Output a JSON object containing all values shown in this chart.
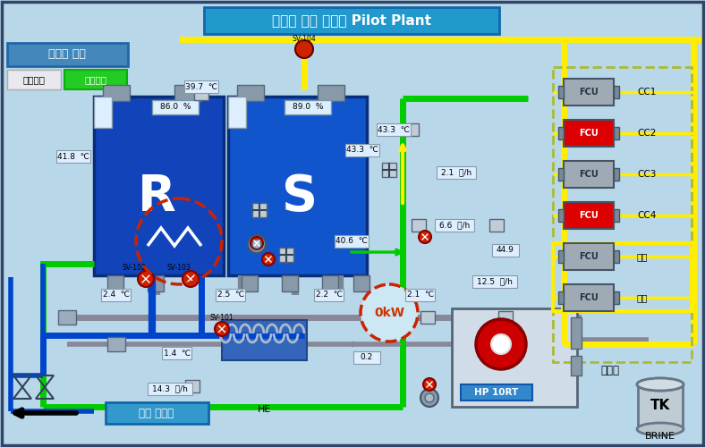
{
  "title": "상수도 원수 온도차 Pilot Plant",
  "bg_color": "#b8d8ea",
  "border_color": "#334466",
  "title_bg": "#3399cc",
  "fcu_labels": [
    "CC1",
    "CC2",
    "CC3",
    "CC4",
    "통신",
    "휴게"
  ],
  "fcu_colors": [
    "#a0aab4",
    "#dd0000",
    "#a0aab4",
    "#dd0000",
    "#a0aab4",
    "#a0aab4"
  ],
  "btn_select": "냉난방 선택",
  "btn_cooling": "냉방선택",
  "btn_heating": "난방선택",
  "label_indoor": "실내기",
  "label_existing": "기존 원수관",
  "label_he": "HE",
  "label_hp": "HP 10RT",
  "label_brine": "BRINE",
  "label_tk": "TK",
  "yellow": "#ffee00",
  "green": "#00cc00",
  "blue": "#0044cc",
  "red_valve": "#cc2200",
  "gray_pipe": "#888899"
}
